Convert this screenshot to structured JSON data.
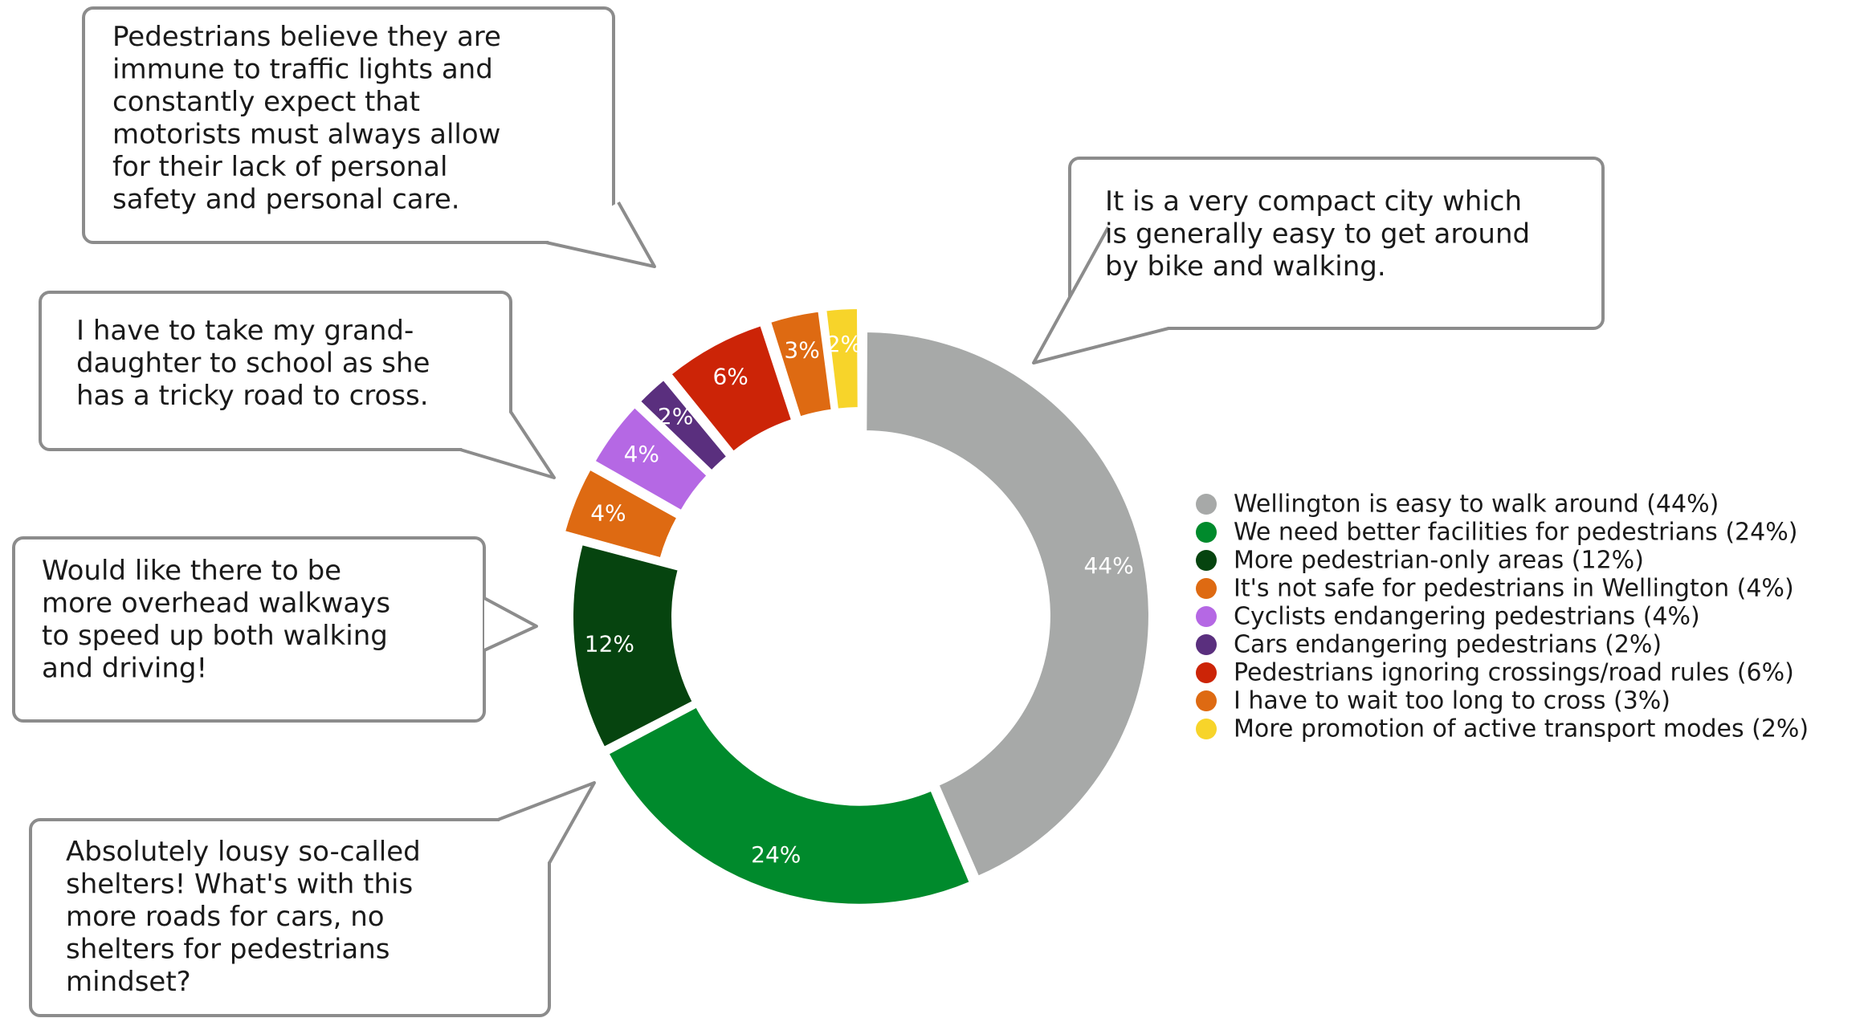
{
  "chart_data": {
    "type": "pie",
    "title": "",
    "legend_position": "right",
    "slices": [
      {
        "label": "Wellington is easy to walk around (44%)",
        "value": 44,
        "value_label": "44%",
        "color": "#a7a9a8",
        "exploded": false
      },
      {
        "label": "We need better facilities for pedestrians (24%)",
        "value": 24,
        "value_label": "24%",
        "color": "#008a2c",
        "exploded": false
      },
      {
        "label": "More pedestrian-only areas (12%)",
        "value": 12,
        "value_label": "12%",
        "color": "#06440f",
        "exploded": false
      },
      {
        "label": "It's not safe for pedestrians in Wellington (4%)",
        "value": 4,
        "value_label": "4%",
        "color": "#de6a12",
        "exploded": true
      },
      {
        "label": "Cyclists endangering pedestrians (4%)",
        "value": 4,
        "value_label": "4%",
        "color": "#b568e4",
        "exploded": true
      },
      {
        "label": "Cars endangering pedestrians (2%)",
        "value": 2,
        "value_label": "2%",
        "color": "#5a2f7e",
        "exploded": true
      },
      {
        "label": "Pedestrians ignoring crossings/road rules (6%)",
        "value": 6,
        "value_label": "6%",
        "color": "#cc2407",
        "exploded": true
      },
      {
        "label": "I have to wait too long to cross (3%)",
        "value": 3,
        "value_label": "3%",
        "color": "#de6a12",
        "exploded": true
      },
      {
        "label": "More promotion of active transport modes (2%)",
        "value": 2,
        "value_label": "2%",
        "color": "#f7d42a",
        "exploded": true
      }
    ]
  },
  "callouts": [
    {
      "id": "pedestrians-immune",
      "lines": [
        "Pedestrians believe they are",
        "immune to traffic lights and",
        "constantly expect that",
        "motorists must always allow",
        "for their lack of personal",
        "safety and personal care."
      ]
    },
    {
      "id": "compact-city",
      "lines": [
        "It is a very compact city which",
        "is generally easy to get around",
        "by bike and walking."
      ]
    },
    {
      "id": "granddaughter",
      "lines": [
        "I have to take my grand-",
        "daughter to school as she",
        "has a tricky road to cross."
      ]
    },
    {
      "id": "overhead-walkways",
      "lines": [
        "Would like there to be",
        "more overhead walkways",
        "to speed up both walking",
        "and driving!"
      ]
    },
    {
      "id": "lousy-shelters",
      "lines": [
        "Absolutely lousy so-called",
        "shelters! What's with this",
        "more roads for cars, no",
        "shelters for pedestrians",
        "mindset?"
      ]
    }
  ]
}
